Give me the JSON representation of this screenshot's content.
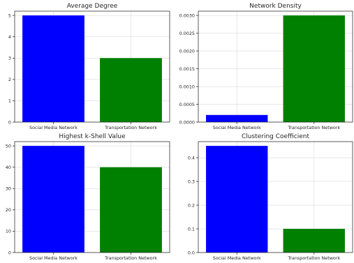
{
  "figure": {
    "background": "#ffffff"
  },
  "chart_data": [
    {
      "type": "bar",
      "title": "Average Degree",
      "categories": [
        "Social Media Network",
        "Transportation Network"
      ],
      "values": [
        5,
        3
      ],
      "colors": [
        "#0000ff",
        "#008000"
      ],
      "ylim": [
        0,
        5.2
      ],
      "yticks": [
        0,
        1,
        2,
        3,
        4,
        5
      ],
      "ytick_labels": [
        "0",
        "1",
        "2",
        "3",
        "4",
        "5"
      ],
      "grid": true
    },
    {
      "type": "bar",
      "title": "Network Density",
      "categories": [
        "Social Media Network",
        "Transportation Network"
      ],
      "values": [
        0.0002,
        0.003
      ],
      "colors": [
        "#0000ff",
        "#008000"
      ],
      "ylim": [
        0,
        0.00312
      ],
      "yticks": [
        0,
        0.0005,
        0.001,
        0.0015,
        0.002,
        0.0025,
        0.003
      ],
      "ytick_labels": [
        "0.0000",
        "0.0005",
        "0.0010",
        "0.0015",
        "0.0020",
        "0.0025",
        "0.0030"
      ],
      "grid": true
    },
    {
      "type": "bar",
      "title": "Highest k-Shell Value",
      "categories": [
        "Social Media Network",
        "Transportation Network"
      ],
      "values": [
        50,
        40
      ],
      "colors": [
        "#0000ff",
        "#008000"
      ],
      "ylim": [
        0,
        52
      ],
      "yticks": [
        0,
        10,
        20,
        30,
        40,
        50
      ],
      "ytick_labels": [
        "0",
        "10",
        "20",
        "30",
        "40",
        "50"
      ],
      "grid": true
    },
    {
      "type": "bar",
      "title": "Clustering Coefficient",
      "categories": [
        "Social Media Network",
        "Transportation Network"
      ],
      "values": [
        0.45,
        0.1
      ],
      "colors": [
        "#0000ff",
        "#008000"
      ],
      "ylim": [
        0,
        0.468
      ],
      "yticks": [
        0,
        0.1,
        0.2,
        0.3,
        0.4
      ],
      "ytick_labels": [
        "0.0",
        "0.1",
        "0.2",
        "0.3",
        "0.4"
      ],
      "grid": true
    }
  ]
}
